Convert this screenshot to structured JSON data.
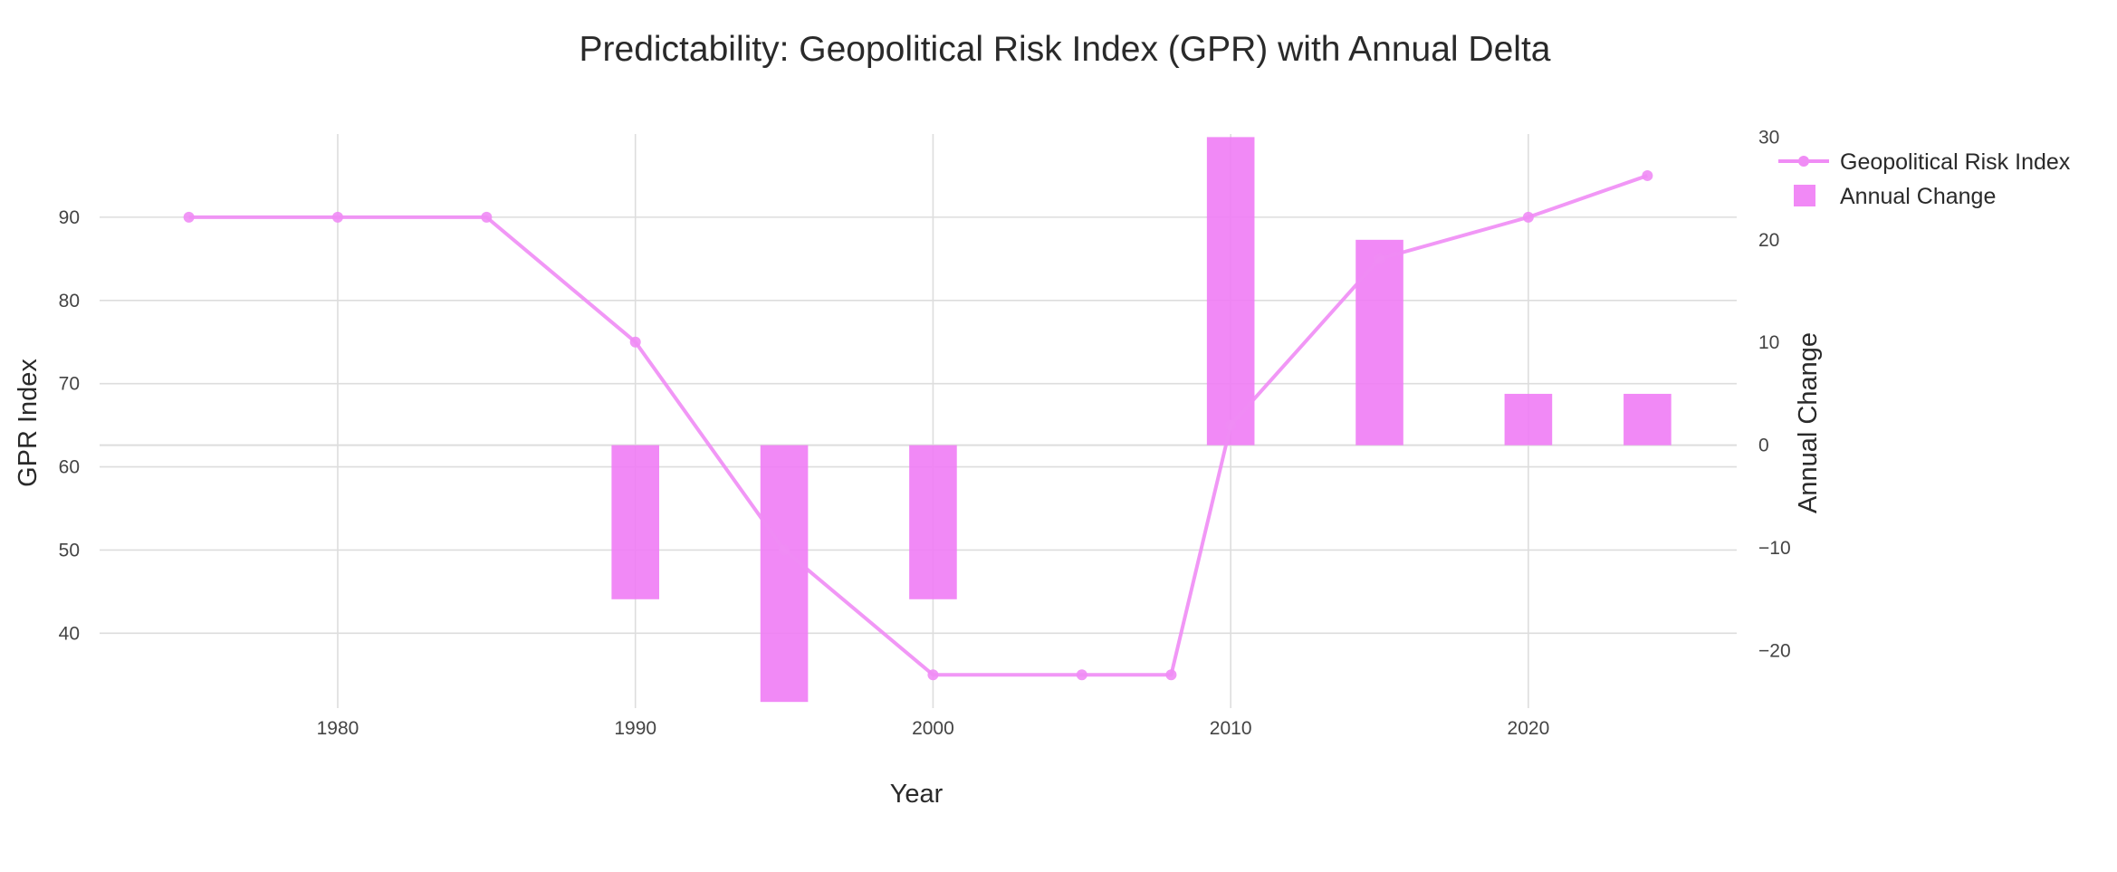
{
  "chart_data": {
    "type": "bar+line",
    "title": "Predictability: Geopolitical Risk Index (GPR) with Annual Delta",
    "xlabel": "Year",
    "ylabel": "GPR Index",
    "y2label": "Annual Change",
    "xlim": [
      1972,
      2027
    ],
    "ylim": [
      31,
      100
    ],
    "y2lim": [
      -25.6,
      30.3
    ],
    "x_ticks": [
      1980,
      1990,
      2000,
      2010,
      2020
    ],
    "y_ticks": [
      40,
      50,
      60,
      70,
      80,
      90
    ],
    "y2_ticks": [
      -20,
      -10,
      0,
      10,
      20,
      30
    ],
    "legend_position": "top-right",
    "grid": true,
    "series": [
      {
        "name": "Geopolitical Risk Index",
        "type": "line+markers",
        "axis": "y",
        "color": "#f08cf5",
        "x": [
          1975,
          1980,
          1985,
          1990,
          1995,
          2000,
          2005,
          2008,
          2010,
          2015,
          2020,
          2024
        ],
        "values": [
          90,
          90,
          90,
          75,
          50,
          35,
          35,
          35,
          65,
          85,
          90,
          95
        ]
      },
      {
        "name": "Annual Change",
        "type": "bar",
        "axis": "y2",
        "color": "#f07cf5",
        "x": [
          1990,
          1995,
          2000,
          2010,
          2015,
          2020,
          2024
        ],
        "values": [
          -15,
          -25,
          -15,
          30,
          20,
          5,
          5
        ]
      }
    ]
  }
}
